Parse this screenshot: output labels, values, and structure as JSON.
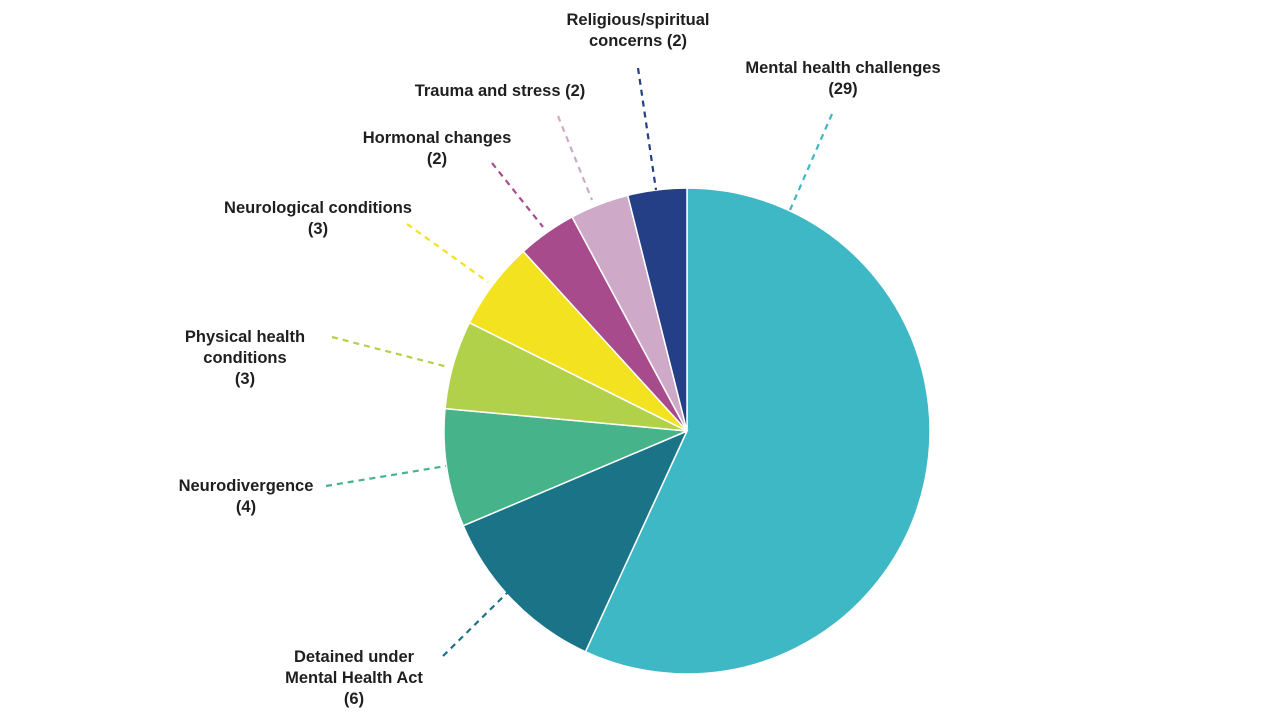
{
  "chart_data": {
    "type": "pie",
    "title": "",
    "start": "12 o'clock",
    "direction": "clockwise",
    "slices": [
      {
        "label": "Mental health challenges",
        "value_text": "(29)",
        "value": 29,
        "color": "#3fb8c6",
        "lines": [
          "Mental health challenges",
          "(29)"
        ]
      },
      {
        "label": "Detained under Mental Health Act",
        "value_text": "(6)",
        "value": 6,
        "color": "#1b7388",
        "lines": [
          "Detained under",
          "Mental Health Act",
          "(6)"
        ]
      },
      {
        "label": "Neurodivergence",
        "value_text": "(4)",
        "value": 4,
        "color": "#46b38a",
        "lines": [
          "Neurodivergence",
          "(4)"
        ]
      },
      {
        "label": "Physical health conditions",
        "value_text": "(3)",
        "value": 3,
        "color": "#b1d14b",
        "lines": [
          "Physical health",
          "conditions",
          "(3)"
        ]
      },
      {
        "label": "Neurological conditions",
        "value_text": "(3)",
        "value": 3,
        "color": "#f2e21f",
        "lines": [
          "Neurological conditions",
          "(3)"
        ]
      },
      {
        "label": "Hormonal changes",
        "value_text": "(2)",
        "value": 2,
        "color": "#a74b8d",
        "lines": [
          "Hormonal changes",
          "(2)"
        ]
      },
      {
        "label": "Trauma and stress",
        "value_text": "(2)",
        "value": 2,
        "color": "#cfaac8",
        "lines": [
          "Trauma and stress (2)"
        ]
      },
      {
        "label": "Religious/spiritual concerns",
        "value_text": "(2)",
        "value": 2,
        "color": "#243f86",
        "lines": [
          "Religious/spiritual",
          "concerns (2)"
        ]
      }
    ]
  }
}
